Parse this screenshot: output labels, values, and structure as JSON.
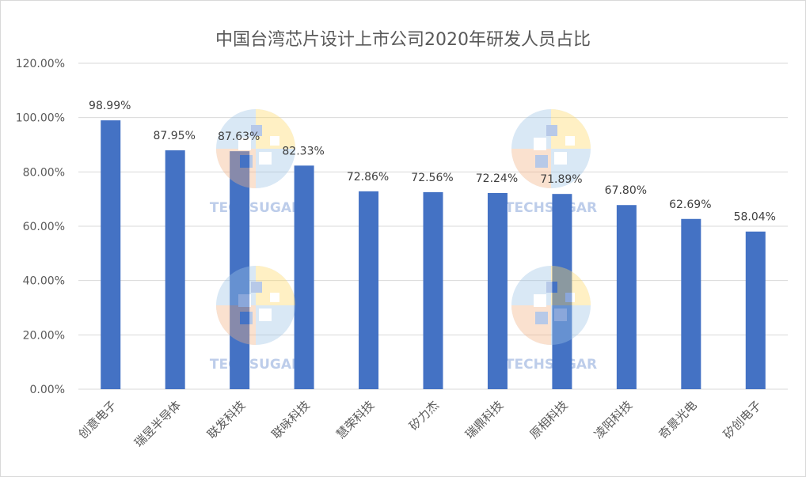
{
  "chart_data": {
    "type": "bar",
    "title": "中国台湾芯片设计上市公司2020年研发人员占比",
    "categories": [
      "创意电子",
      "瑞昱半导体",
      "联发科技",
      "联咏科技",
      "慧荣科技",
      "矽力杰",
      "瑞鼎科技",
      "原相科技",
      "凌阳科技",
      "奇景光电",
      "矽创电子"
    ],
    "values": [
      98.99,
      87.95,
      87.63,
      82.33,
      72.86,
      72.56,
      72.24,
      71.89,
      67.8,
      62.69,
      58.04
    ],
    "data_labels": [
      "98.99%",
      "87.95%",
      "87.63%",
      "82.33%",
      "72.86%",
      "72.56%",
      "72.24%",
      "71.89%",
      "67.80%",
      "62.69%",
      "58.04%"
    ],
    "ylim": [
      0,
      120
    ],
    "yticks": [
      0,
      20,
      40,
      60,
      80,
      100,
      120
    ],
    "ytick_labels": [
      "0.00%",
      "20.00%",
      "40.00%",
      "60.00%",
      "80.00%",
      "100.00%",
      "120.00%"
    ],
    "xlabel": "",
    "ylabel": "",
    "grid": true,
    "legend": "none",
    "bar_color": "#4472c4",
    "gridline_color": "#d9d9d9"
  },
  "watermark": {
    "text": "TECHSUGAR",
    "icon": "checker-circle-logo-icon",
    "colors": [
      "#4472c4",
      "#f4b183",
      "#ffd966",
      "#9dc3e6"
    ]
  }
}
